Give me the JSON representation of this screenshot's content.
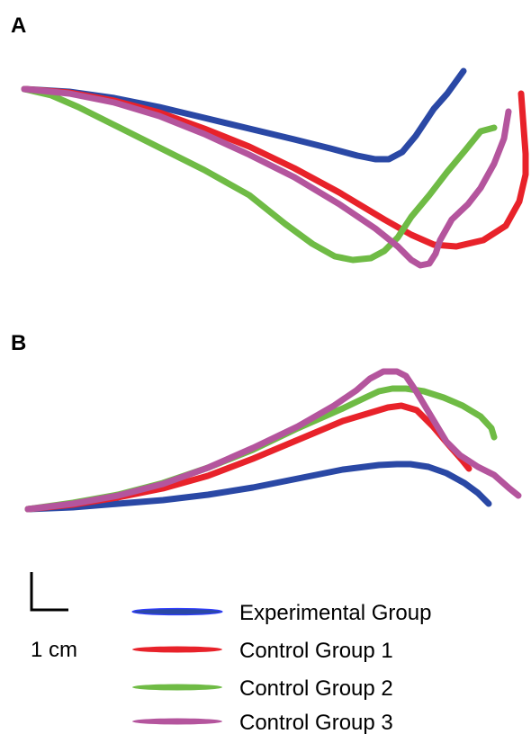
{
  "chart_data": [
    {
      "type": "line",
      "panel_label": "A",
      "series": [
        {
          "name": "Experimental Group",
          "color": "#2a48a5",
          "points": [
            [
              0,
              0
            ],
            [
              50,
              3
            ],
            [
              100,
              10
            ],
            [
              150,
              20
            ],
            [
              200,
              32
            ],
            [
              250,
              44
            ],
            [
              300,
              56
            ],
            [
              340,
              66
            ],
            [
              370,
              74
            ],
            [
              390,
              78
            ],
            [
              405,
              78
            ],
            [
              420,
              70
            ],
            [
              435,
              52
            ],
            [
              455,
              22
            ],
            [
              470,
              5
            ],
            [
              488,
              -20
            ]
          ]
        },
        {
          "name": "Control Group 1",
          "color": "#e8222a",
          "points": [
            [
              0,
              0
            ],
            [
              50,
              4
            ],
            [
              100,
              13
            ],
            [
              150,
              26
            ],
            [
              200,
              44
            ],
            [
              250,
              64
            ],
            [
              300,
              88
            ],
            [
              350,
              115
            ],
            [
              400,
              145
            ],
            [
              430,
              162
            ],
            [
              455,
              173
            ],
            [
              480,
              175
            ],
            [
              510,
              168
            ],
            [
              535,
              152
            ],
            [
              550,
              125
            ],
            [
              557,
              95
            ],
            [
              557,
              72
            ],
            [
              552,
              5
            ]
          ]
        },
        {
          "name": "Control Group 2",
          "color": "#6fbb45",
          "points": [
            [
              0,
              0
            ],
            [
              30,
              7
            ],
            [
              60,
              20
            ],
            [
              100,
              40
            ],
            [
              150,
              65
            ],
            [
              200,
              90
            ],
            [
              250,
              118
            ],
            [
              290,
              150
            ],
            [
              320,
              172
            ],
            [
              345,
              186
            ],
            [
              365,
              190
            ],
            [
              385,
              188
            ],
            [
              400,
              180
            ],
            [
              415,
              165
            ],
            [
              430,
              142
            ],
            [
              450,
              118
            ],
            [
              470,
              92
            ],
            [
              490,
              68
            ],
            [
              507,
              47
            ],
            [
              522,
              43
            ]
          ]
        },
        {
          "name": "Control Group 3",
          "color": "#b4559d",
          "points": [
            [
              0,
              0
            ],
            [
              50,
              5
            ],
            [
              100,
              15
            ],
            [
              150,
              30
            ],
            [
              200,
              50
            ],
            [
              250,
              73
            ],
            [
              300,
              98
            ],
            [
              350,
              128
            ],
            [
              390,
              155
            ],
            [
              415,
              175
            ],
            [
              430,
              190
            ],
            [
              440,
              196
            ],
            [
              450,
              194
            ],
            [
              457,
              183
            ],
            [
              462,
              168
            ],
            [
              475,
              145
            ],
            [
              493,
              128
            ],
            [
              507,
              110
            ],
            [
              522,
              83
            ],
            [
              533,
              55
            ],
            [
              538,
              25
            ]
          ]
        }
      ]
    },
    {
      "type": "line",
      "panel_label": "B",
      "series": [
        {
          "name": "Experimental Group",
          "color": "#2a48a5",
          "points": [
            [
              0,
              0
            ],
            [
              50,
              -2
            ],
            [
              100,
              -6
            ],
            [
              150,
              -10
            ],
            [
              200,
              -16
            ],
            [
              250,
              -24
            ],
            [
              300,
              -34
            ],
            [
              350,
              -44
            ],
            [
              390,
              -49
            ],
            [
              410,
              -50
            ],
            [
              425,
              -50
            ],
            [
              445,
              -47
            ],
            [
              465,
              -40
            ],
            [
              485,
              -29
            ],
            [
              500,
              -18
            ],
            [
              512,
              -6
            ]
          ]
        },
        {
          "name": "Control Group 1",
          "color": "#e8222a",
          "points": [
            [
              0,
              0
            ],
            [
              50,
              -5
            ],
            [
              100,
              -13
            ],
            [
              150,
              -23
            ],
            [
              200,
              -37
            ],
            [
              250,
              -56
            ],
            [
              300,
              -77
            ],
            [
              350,
              -98
            ],
            [
              380,
              -107
            ],
            [
              400,
              -113
            ],
            [
              415,
              -115
            ],
            [
              432,
              -110
            ],
            [
              450,
              -92
            ],
            [
              467,
              -72
            ],
            [
              482,
              -55
            ],
            [
              490,
              -45
            ]
          ]
        },
        {
          "name": "Control Group 2",
          "color": "#6fbb45",
          "points": [
            [
              0,
              0
            ],
            [
              50,
              -7
            ],
            [
              100,
              -16
            ],
            [
              150,
              -29
            ],
            [
              200,
              -46
            ],
            [
              250,
              -66
            ],
            [
              300,
              -90
            ],
            [
              350,
              -112
            ],
            [
              375,
              -124
            ],
            [
              390,
              -131
            ],
            [
              405,
              -134
            ],
            [
              420,
              -134
            ],
            [
              440,
              -131
            ],
            [
              462,
              -124
            ],
            [
              483,
              -115
            ],
            [
              503,
              -103
            ],
            [
              515,
              -90
            ],
            [
              518,
              -80
            ]
          ]
        },
        {
          "name": "Control Group 3",
          "color": "#b4559d",
          "points": [
            [
              0,
              0
            ],
            [
              50,
              -6
            ],
            [
              100,
              -15
            ],
            [
              150,
              -28
            ],
            [
              200,
              -46
            ],
            [
              250,
              -68
            ],
            [
              300,
              -92
            ],
            [
              340,
              -115
            ],
            [
              365,
              -132
            ],
            [
              380,
              -145
            ],
            [
              395,
              -153
            ],
            [
              410,
              -153
            ],
            [
              420,
              -148
            ],
            [
              432,
              -130
            ],
            [
              450,
              -100
            ],
            [
              465,
              -75
            ],
            [
              480,
              -60
            ],
            [
              500,
              -47
            ],
            [
              518,
              -38
            ],
            [
              535,
              -23
            ],
            [
              545,
              -15
            ]
          ]
        }
      ]
    }
  ],
  "scale_bar": {
    "label": "1 cm"
  },
  "legend": [
    {
      "name": "Experimental Group",
      "color": "#2a48a5"
    },
    {
      "name": "Control Group 1",
      "color": "#e8222a"
    },
    {
      "name": "Control Group 2",
      "color": "#6fbb45"
    },
    {
      "name": "Control Group 3",
      "color": "#b4559d"
    }
  ]
}
